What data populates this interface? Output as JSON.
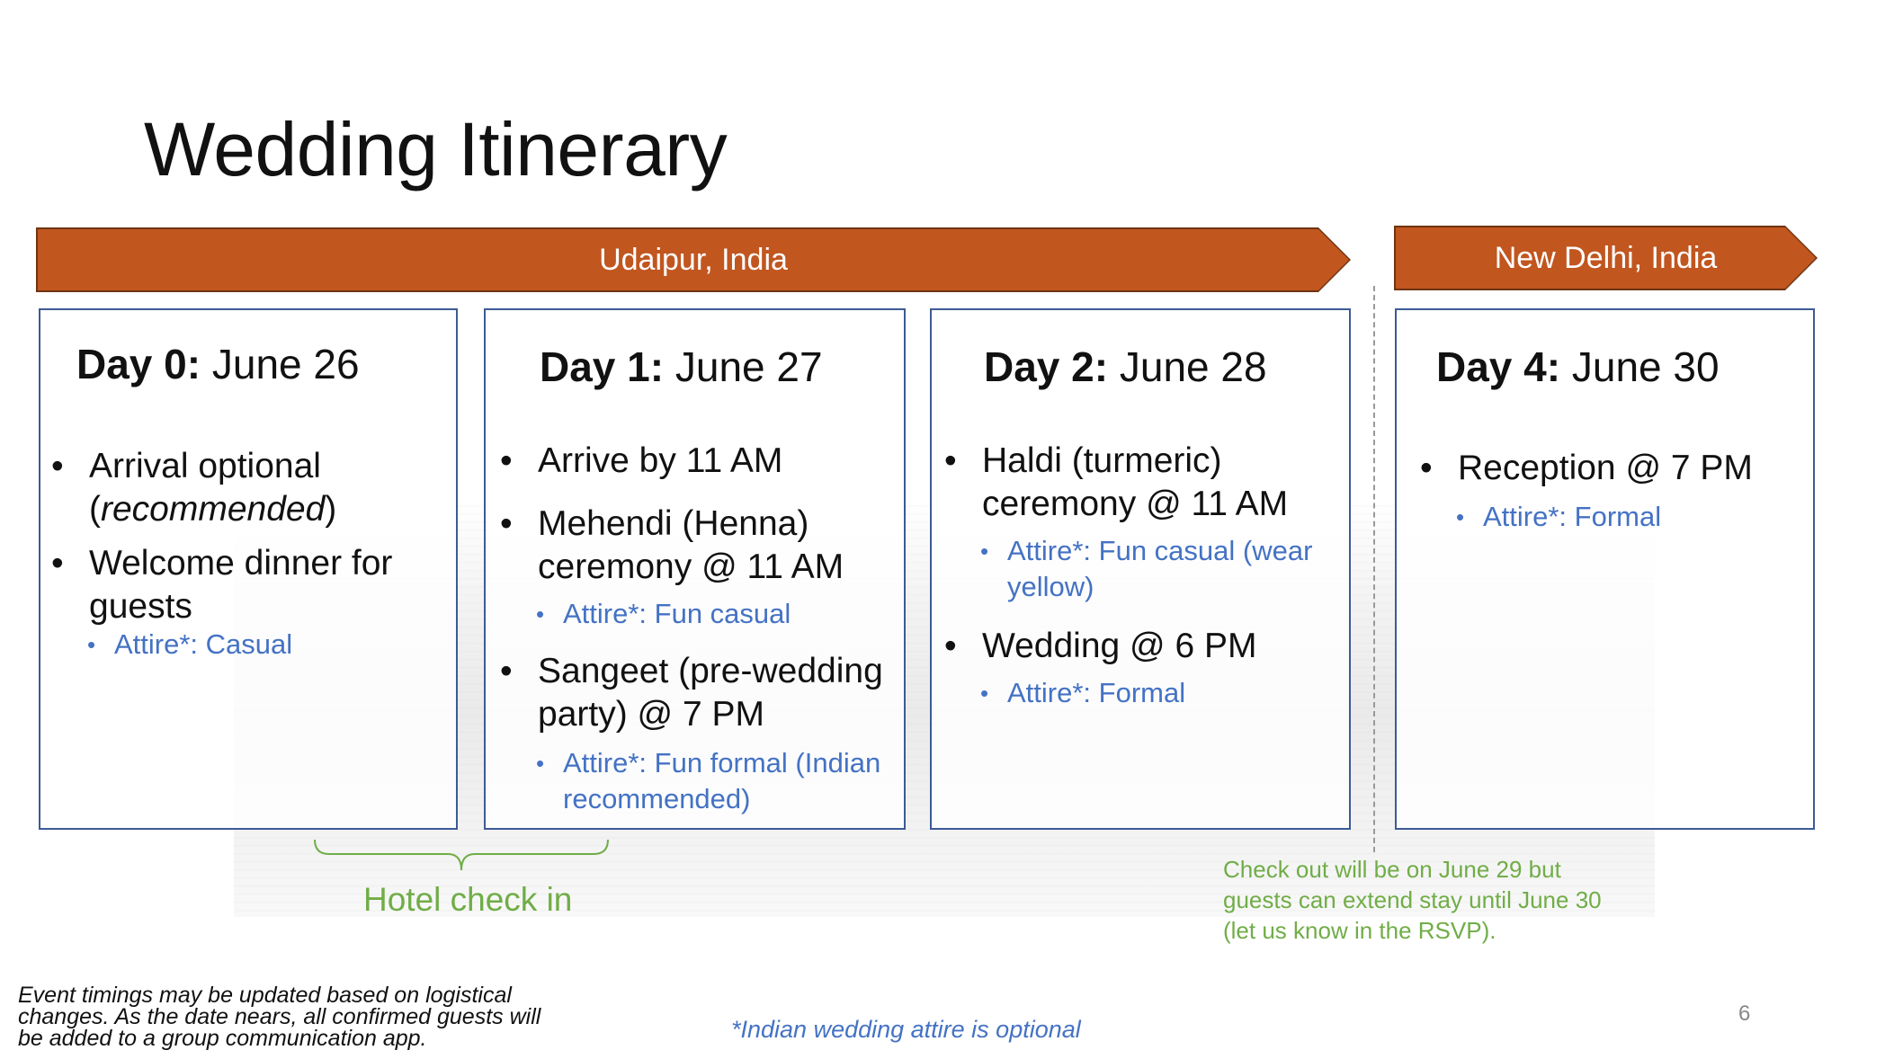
{
  "slide": {
    "title": "Wedding Itinerary",
    "page_number": "6"
  },
  "locations": [
    {
      "label": "Udaipur, India"
    },
    {
      "label": "New Delhi, India"
    }
  ],
  "days": [
    {
      "day_label": "Day 0:",
      "date": "June 26",
      "items": [
        {
          "text_a": "Arrival optional",
          "text_b_open": "(",
          "text_b_italic": "recommended",
          "text_b_close": ")"
        },
        {
          "text": "Welcome dinner for guests",
          "attire": "Attire*: Casual"
        }
      ]
    },
    {
      "day_label": "Day 1:",
      "date": "June 27",
      "items": [
        {
          "text": "Arrive by 11 AM"
        },
        {
          "text": "Mehendi (Henna) ceremony @ 11 AM",
          "attire": "Attire*: Fun casual"
        },
        {
          "text": "Sangeet (pre-wedding party) @ 7 PM",
          "attire": "Attire*: Fun formal (Indian recommended)"
        }
      ]
    },
    {
      "day_label": "Day 2:",
      "date": "June 28",
      "items": [
        {
          "text": "Haldi (turmeric) ceremony @ 11 AM",
          "attire": "Attire*: Fun casual (wear yellow)"
        },
        {
          "text": "Wedding @ 6 PM",
          "attire": "Attire*: Formal"
        }
      ]
    },
    {
      "day_label": "Day 4:",
      "date": "June 30",
      "items": [
        {
          "text": "Reception @ 7 PM",
          "attire": "Attire*: Formal"
        }
      ]
    }
  ],
  "notes": {
    "hotel_check_in": "Hotel check in",
    "checkout": "Check out will be on June 29 but guests can extend stay until June 30 (let us know in the RSVP).",
    "disclaimer": "Event timings may be updated based on logistical changes. As the date nears, all confirmed guests will be added to a group communication app.",
    "attire_footnote": "*Indian wedding attire is optional"
  },
  "colors": {
    "banner": "#c1561f",
    "card_border": "#3d5a96",
    "attire_text": "#4472c4",
    "note_green": "#70ad47"
  }
}
